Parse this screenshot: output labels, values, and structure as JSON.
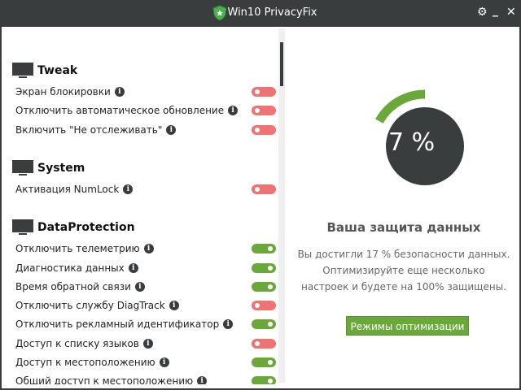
{
  "window": {
    "title": "Win10 PrivacyFix",
    "settings_icon": "gear-icon",
    "minimize_label": "_",
    "close_label": "✕"
  },
  "colors": {
    "titlebar": "#3a3d3e",
    "on": "#6aa83a",
    "off": "#f07272",
    "accent": "#6aa83a"
  },
  "sections": [
    {
      "title": "Tweak",
      "items": [
        {
          "label": "Экран блокировки",
          "on": false
        },
        {
          "label": "Отключить автоматическое обновление",
          "on": false
        },
        {
          "label": "Включить \"Не отслеживать\"",
          "on": false
        }
      ]
    },
    {
      "title": "System",
      "items": [
        {
          "label": "Активация NumLock",
          "on": false
        }
      ]
    },
    {
      "title": "DataProtection",
      "items": [
        {
          "label": "Отключить телеметрию",
          "on": true
        },
        {
          "label": "Диагностика данных",
          "on": true
        },
        {
          "label": "Время обратной связи",
          "on": true
        },
        {
          "label": "Отключить службу DiagTrack",
          "on": false
        },
        {
          "label": "Отключить рекламный идентификатор",
          "on": true
        },
        {
          "label": "Доступ к списку языков",
          "on": false
        },
        {
          "label": "Доступ к местоположению",
          "on": true
        },
        {
          "label": "Общий доступ к местоположению",
          "on": true
        }
      ]
    }
  ],
  "status": {
    "percent": 17,
    "percent_label": "17 %",
    "heading": "Ваша защита данных",
    "line1": "Вы достигли 17 % безопасности данных.",
    "line2": "Оптимизируйте еще несколько",
    "line3": "настроек и будете на 100% защищены.",
    "button": "Режимы оптимизации"
  }
}
